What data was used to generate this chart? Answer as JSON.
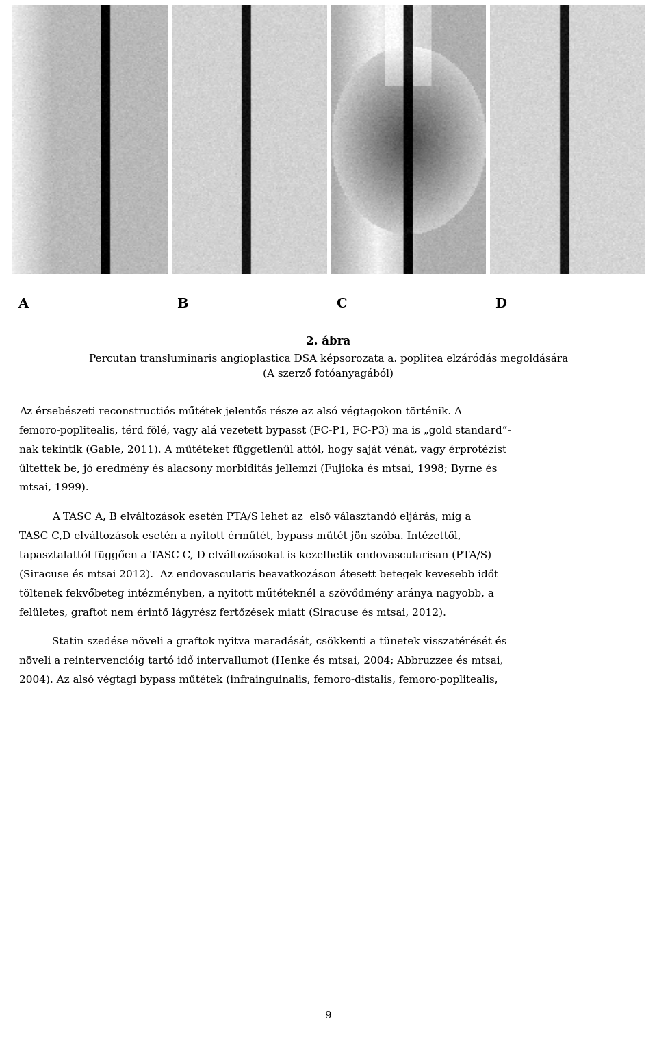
{
  "background_color": "#ffffff",
  "figure_title": "2. ábra",
  "figure_caption_line1": "Percutan transluminaris angioplastica DSA képsorozata a. poplitea elzáródás megoldására",
  "figure_caption_line2": "(A szerző fotóanyagából)",
  "panel_labels": [
    "A",
    "B",
    "C",
    "D"
  ],
  "body_paragraphs": [
    {
      "indent": false,
      "lines": [
        "Az érsebészeti reconstructiós műtétek jelentős része az alsó végtagokon történik. A",
        "femoro-poplitealis, térd fölé, vagy alá vezetett bypasst (FC-P1, FC-P3) ma is „gold standard”-",
        "nak tekintik (Gable, 2011). A műtéteket függetlenül attól, hogy saját vénát, vagy érprotézist",
        "ültettek be, jó eredmény és alacsony morbiditás jellemzi (Fujioka és mtsai, 1998; Byrne és",
        "mtsai, 1999)."
      ]
    },
    {
      "indent": true,
      "lines": [
        "A TASC A, B elváltozások esetén PTA/S lehet az  első választandó eljárás, míg a",
        "TASC C,D elváltozások esetén a nyitott érműtét, bypass műtét jön szóba. Intézettől,",
        "tapasztalattól függően a TASC C, D elváltozásokat is kezelhetik endovascularisan (PTA/S)",
        "(Siracuse és mtsai 2012).  Az endovascularis beavatkozáson átesett betegek kevesebb időt",
        "töltenek fekvőbeteg intézményben, a nyitott műtéteknél a szövődmény aránya nagyobb, a",
        "felületes, graftot nem érintő lágyrész fertőzések miatt (Siracuse és mtsai, 2012)."
      ]
    },
    {
      "indent": true,
      "lines": [
        "Statin szedése növeli a graftok nyitva maradását, csökkenti a tünetek visszatérését és",
        "növeli a reintervencióig tartó idő intervallumot (Henke és mtsai, 2004; Abbruzzee és mtsai,",
        "2004). Az alsó végtagi bypass műtétek (infrainguinalis, femoro-distalis, femoro-poplitealis,"
      ]
    }
  ],
  "page_number": "9",
  "text_fontsize": 11.0,
  "caption_fontsize": 11.0,
  "title_fontsize": 12,
  "label_fontsize": 14
}
